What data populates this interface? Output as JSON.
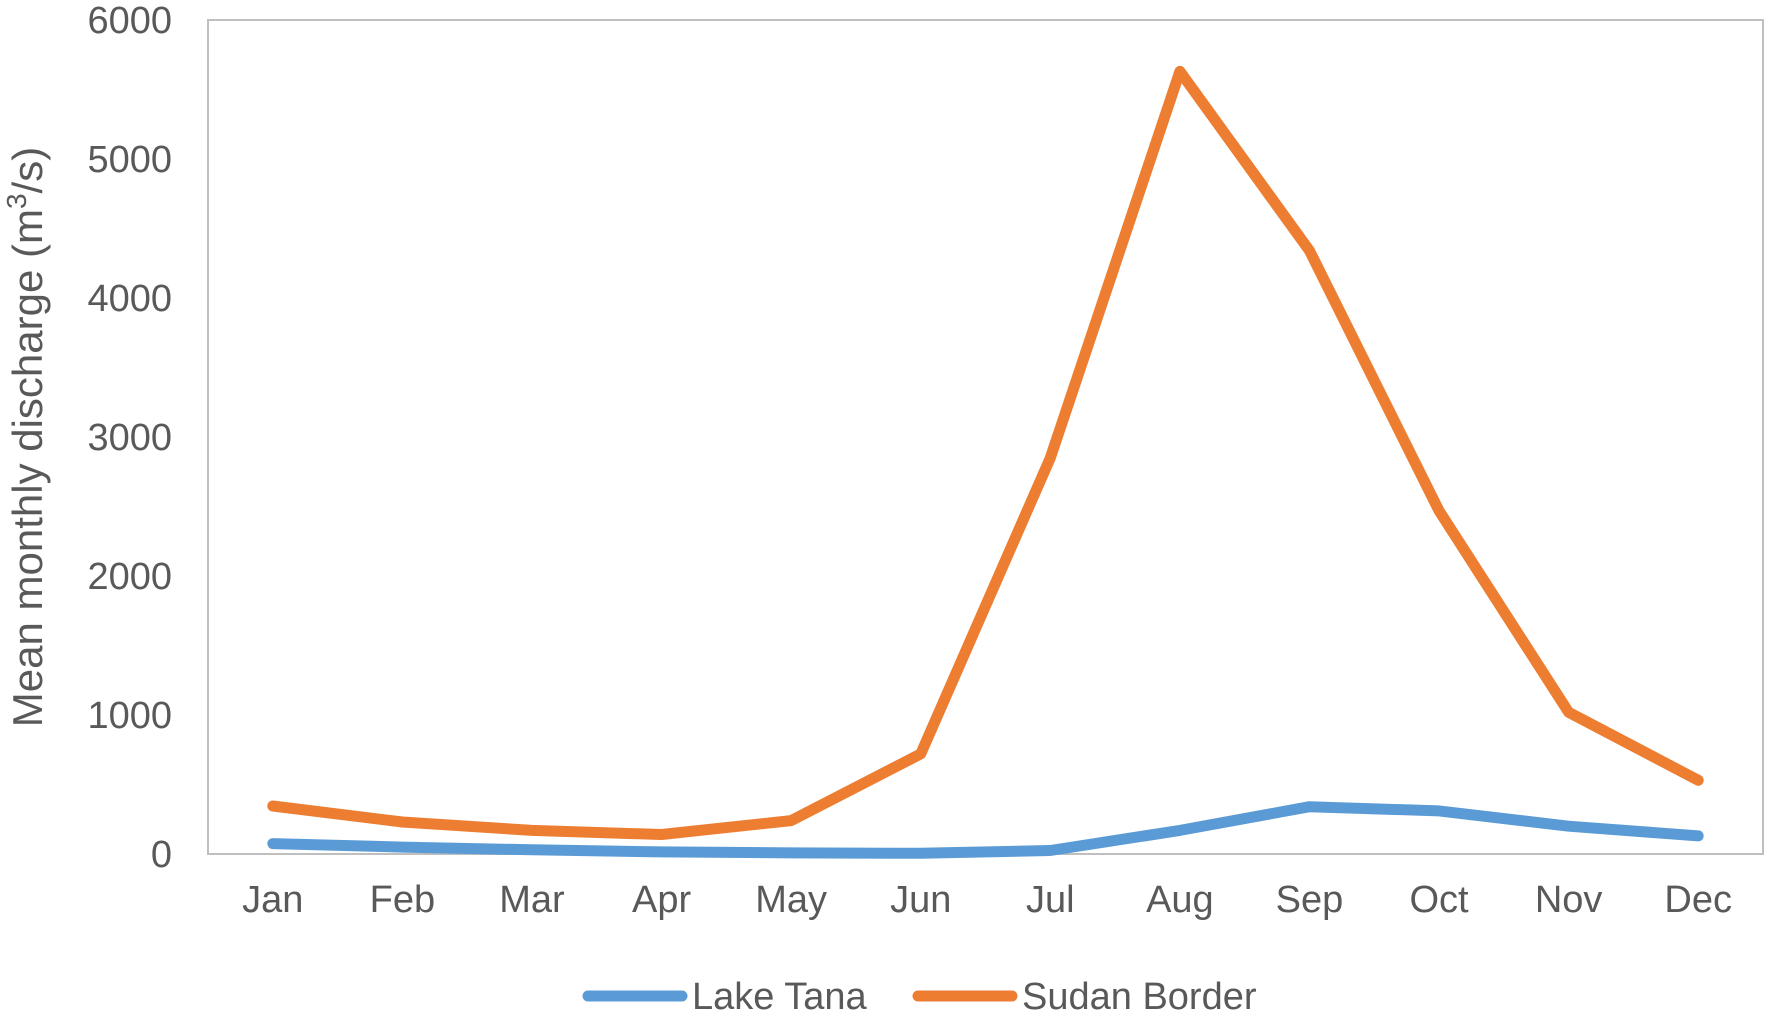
{
  "chart_data": {
    "type": "line",
    "title": "",
    "xlabel": "",
    "ylabel": {
      "prefix": "Mean monthly discharge (m",
      "superscript": "3",
      "suffix": "/s)"
    },
    "categories": [
      "Jan",
      "Feb",
      "Mar",
      "Apr",
      "May",
      "Jun",
      "Jul",
      "Aug",
      "Sep",
      "Oct",
      "Nov",
      "Dec"
    ],
    "ylim": [
      0,
      6000
    ],
    "yticks": [
      "0",
      "1000",
      "2000",
      "3000",
      "4000",
      "5000",
      "6000"
    ],
    "grid": false,
    "legend_position": "bottom",
    "series": [
      {
        "name": "Lake Tana",
        "color": "#5B9BD5",
        "values": [
          75,
          50,
          30,
          15,
          8,
          5,
          25,
          170,
          340,
          310,
          200,
          130
        ]
      },
      {
        "name": "Sudan Border",
        "color": "#ED7D31",
        "values": [
          345,
          230,
          170,
          140,
          240,
          720,
          2850,
          5630,
          4340,
          2470,
          1020,
          530
        ]
      }
    ]
  }
}
